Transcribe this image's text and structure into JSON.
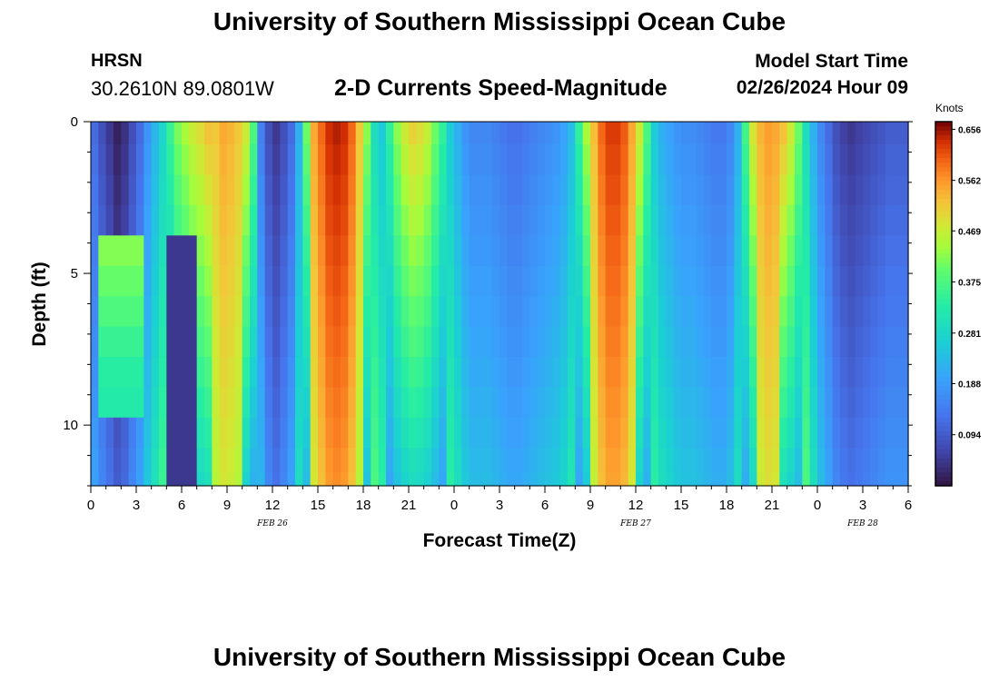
{
  "header": {
    "title": "University of Southern Mississippi Ocean Cube",
    "station": "HRSN",
    "coordinates": "30.2610N  89.0801W",
    "subtitle": "2-D Currents Speed-Magnitude",
    "model_start_label": "Model Start Time",
    "model_start_value": "02/26/2024 Hour 09"
  },
  "footer": {
    "title": "University of Southern Mississippi Ocean Cube"
  },
  "chart_data": {
    "type": "heatmap",
    "title": "2-D Currents Speed-Magnitude",
    "xlabel": "Forecast Time(Z)",
    "ylabel": "Depth (ft)",
    "xlim": [
      0,
      54
    ],
    "ylim": [
      0,
      12
    ],
    "x_ticks": [
      0,
      3,
      6,
      9,
      12,
      15,
      18,
      21,
      24,
      27,
      30,
      33,
      36,
      39,
      42,
      45,
      48,
      51,
      54
    ],
    "x_tick_labels": [
      "0",
      "3",
      "6",
      "9",
      "12",
      "15",
      "18",
      "21",
      "0",
      "3",
      "6",
      "9",
      "12",
      "15",
      "18",
      "21",
      "0",
      "3",
      "6"
    ],
    "date_labels": [
      {
        "x": 12,
        "text": "FEB 26"
      },
      {
        "x": 36,
        "text": "FEB 27"
      },
      {
        "x": 51,
        "text": "FEB 28"
      }
    ],
    "y_ticks": [
      0,
      5,
      10
    ],
    "y_tick_labels": [
      "0",
      "5",
      "10"
    ],
    "colorbar": {
      "label": "Knots",
      "min": 0.0,
      "max": 0.67,
      "ticks": [
        0.656,
        0.562,
        0.469,
        0.375,
        0.281,
        0.188,
        0.094
      ],
      "tick_labels": [
        "0.656",
        "0.562",
        "0.469",
        "0.375",
        "0.281",
        "0.188",
        "0.094"
      ]
    },
    "depths": [
      0.25,
      1.25,
      2.25,
      3.25,
      4.25,
      5.25,
      6.25,
      7.25,
      8.25,
      9.25,
      10.25,
      11.25,
      11.85
    ],
    "time_bin_hours": 0.5,
    "profile_surface_values": [
      0.12,
      0.08,
      0.05,
      0.02,
      0.04,
      0.08,
      0.12,
      0.18,
      0.23,
      0.28,
      0.33,
      0.39,
      0.42,
      0.45,
      0.47,
      0.5,
      0.52,
      0.55,
      0.54,
      0.52,
      0.45,
      0.35,
      0.15,
      0.08,
      0.05,
      0.08,
      0.12,
      0.22,
      0.38,
      0.55,
      0.6,
      0.64,
      0.65,
      0.64,
      0.6,
      0.52,
      0.4,
      0.3,
      0.26,
      0.32,
      0.4,
      0.45,
      0.48,
      0.47,
      0.44,
      0.38,
      0.32,
      0.26,
      0.22,
      0.18,
      0.16,
      0.16,
      0.16,
      0.15,
      0.14,
      0.13,
      0.13,
      0.14,
      0.15,
      0.16,
      0.17,
      0.18,
      0.2,
      0.24,
      0.32,
      0.42,
      0.53,
      0.6,
      0.63,
      0.63,
      0.61,
      0.55,
      0.45,
      0.35,
      0.26,
      0.22,
      0.2,
      0.18,
      0.17,
      0.17,
      0.16,
      0.15,
      0.14,
      0.14,
      0.16,
      0.22,
      0.34,
      0.46,
      0.54,
      0.56,
      0.55,
      0.5,
      0.45,
      0.38,
      0.3,
      0.22,
      0.16,
      0.12,
      0.08,
      0.06,
      0.05,
      0.06,
      0.07,
      0.08,
      0.09,
      0.1,
      0.1,
      0.1,
      0.11
    ]
  }
}
